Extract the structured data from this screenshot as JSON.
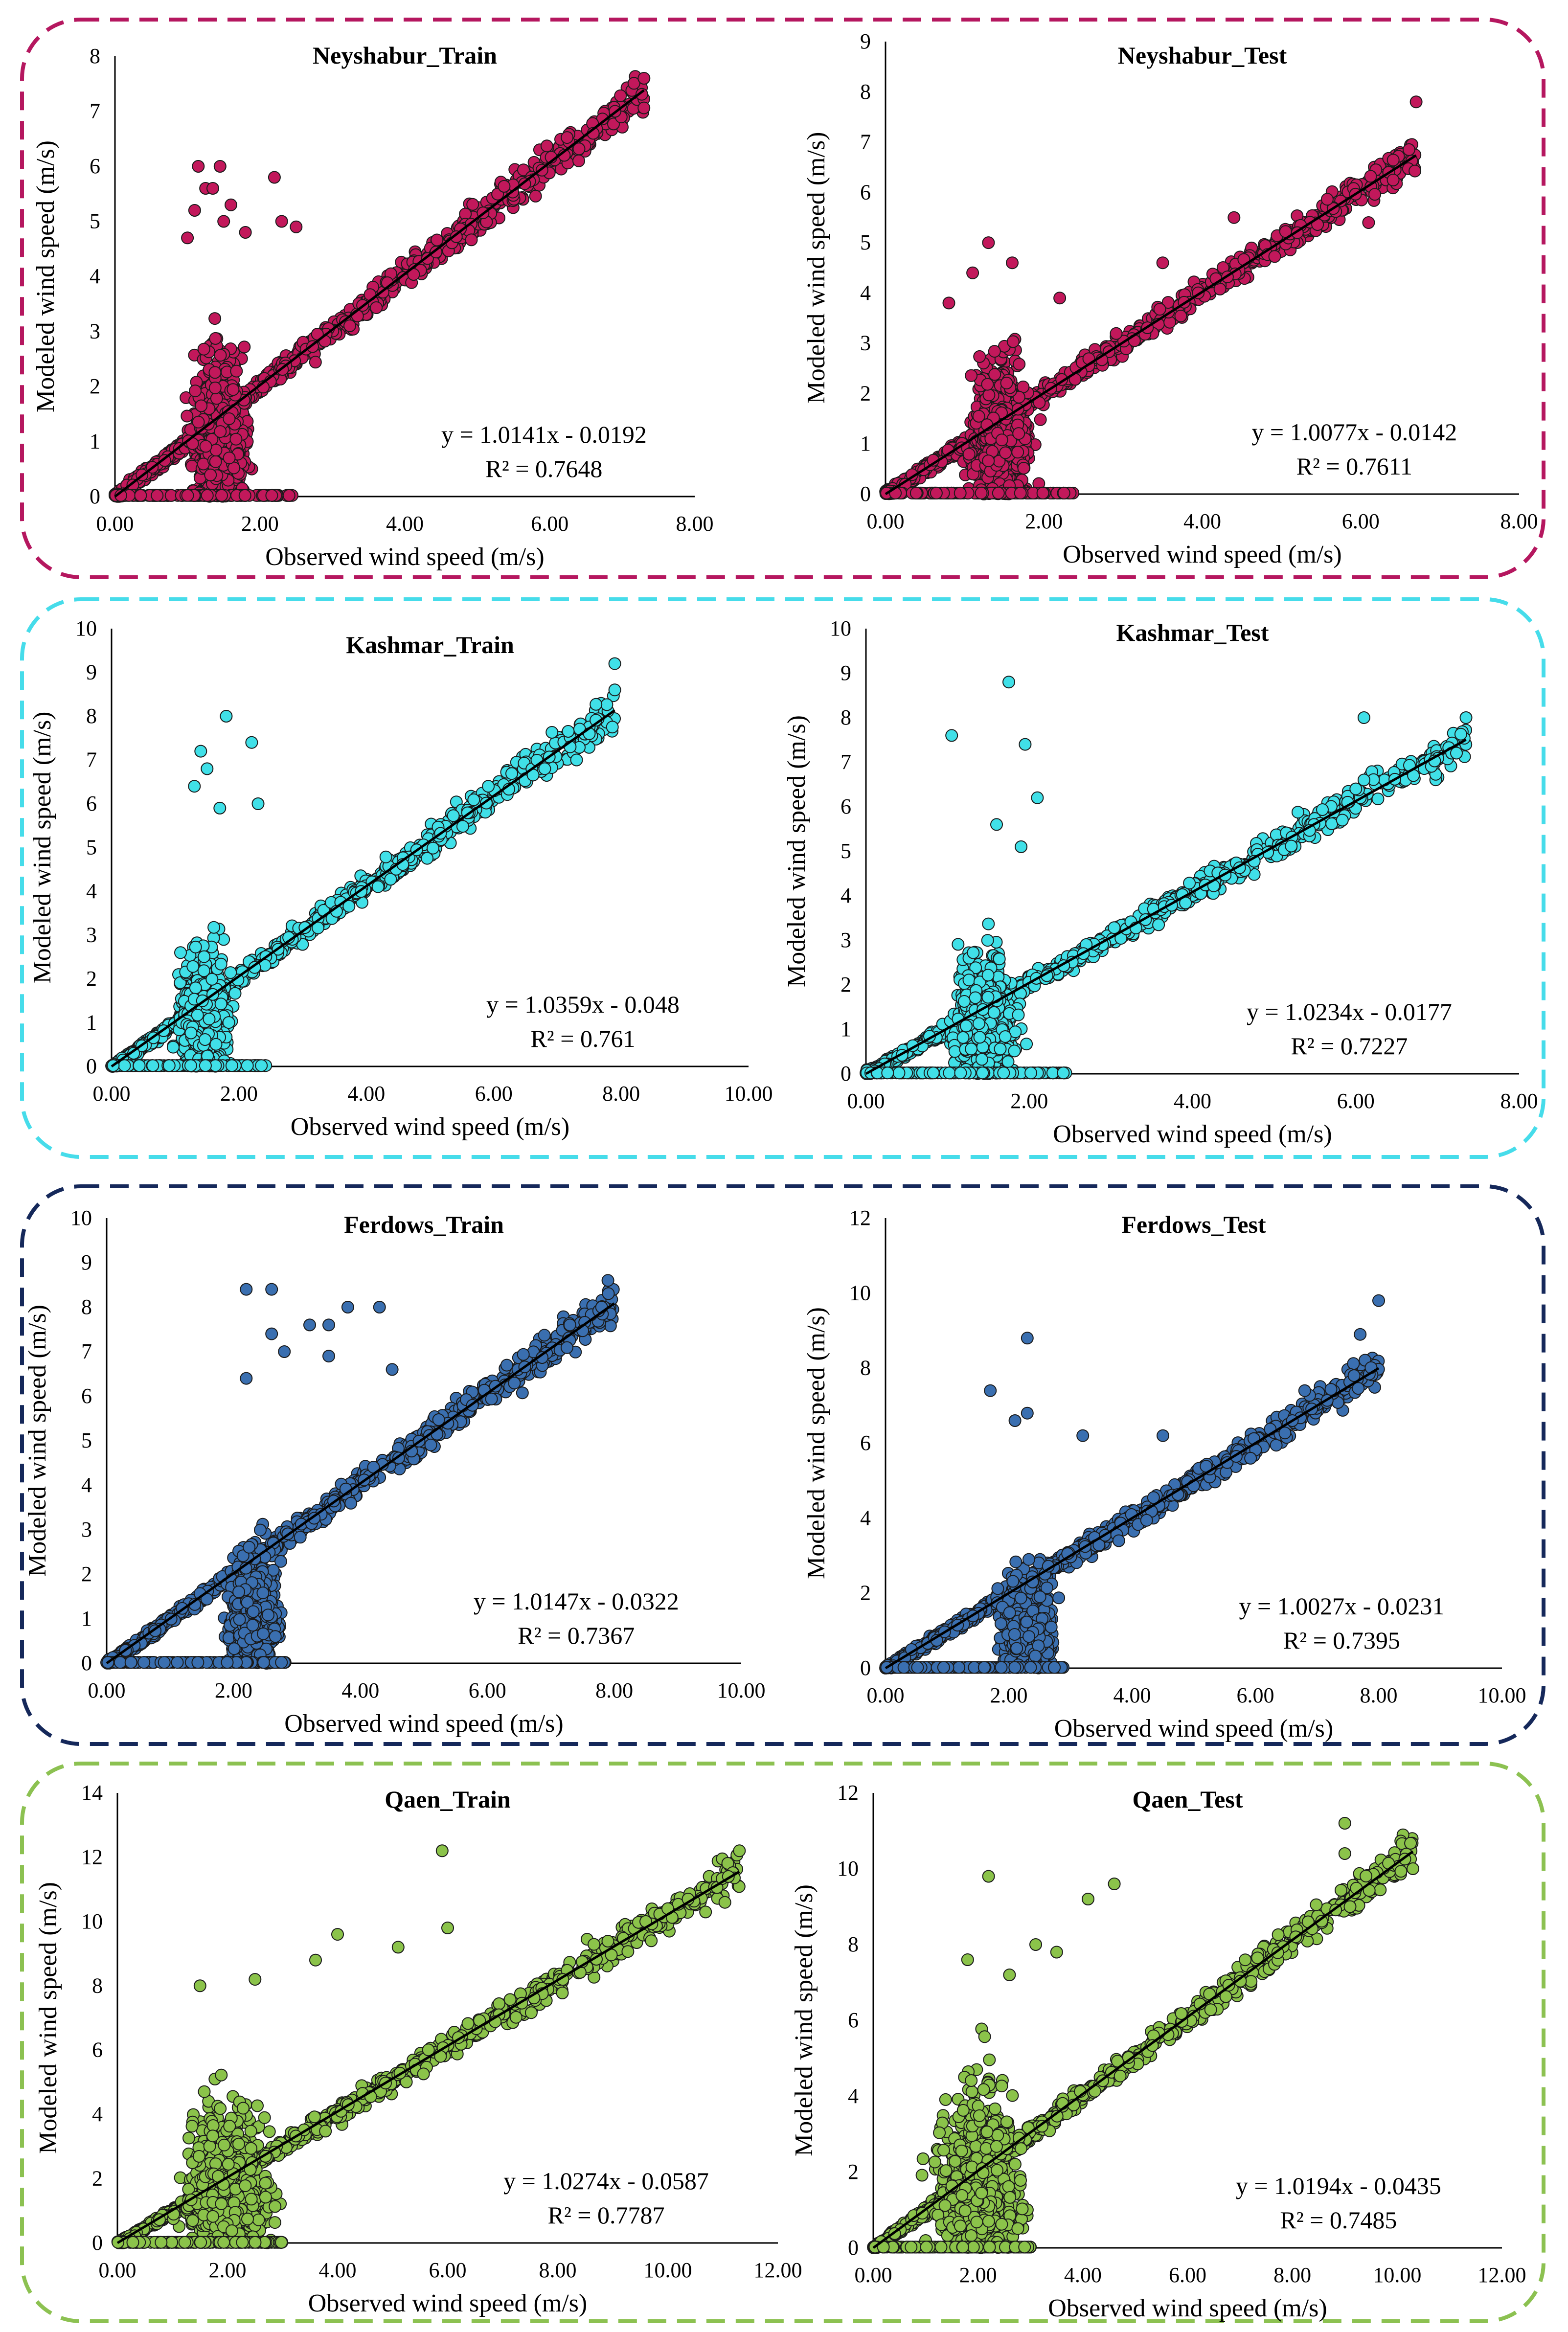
{
  "figure": {
    "groups": [
      {
        "station": "Neyshabur",
        "border_color": "#b5175f"
      },
      {
        "station": "Kashmar",
        "border_color": "#46dcea"
      },
      {
        "station": "Ferdows",
        "border_color": "#15285a"
      },
      {
        "station": "Qaen",
        "border_color": "#8cc151"
      }
    ]
  },
  "chart_data": [
    {
      "type": "scatter",
      "title": "Neyshabur_Train",
      "xlabel": "Observed wind speed (m/s)",
      "ylabel": "Modeled wind speed (m/s)",
      "xlim": [
        0,
        8
      ],
      "ylim": [
        0,
        8
      ],
      "xticks": [
        "0.00",
        "2.00",
        "4.00",
        "6.00",
        "8.00"
      ],
      "yticks": [
        "0",
        "1",
        "2",
        "3",
        "4",
        "5",
        "6",
        "7",
        "8"
      ],
      "marker_color": "#c2185b",
      "equation": "y = 1.0141x - 0.0192",
      "r2_label": "R² = 0.7648",
      "trendline": {
        "slope": 1.0141,
        "intercept": -0.0192,
        "x_range": [
          0,
          7.3
        ]
      },
      "outliers": [
        [
          1.15,
          6.0
        ],
        [
          1.45,
          6.0
        ],
        [
          1.25,
          5.6
        ],
        [
          1.35,
          5.6
        ],
        [
          2.2,
          5.8
        ],
        [
          1.1,
          5.2
        ],
        [
          1.5,
          5.0
        ],
        [
          1.8,
          4.8
        ],
        [
          2.3,
          5.0
        ],
        [
          1.6,
          5.3
        ],
        [
          2.5,
          4.9
        ],
        [
          1.0,
          4.7
        ],
        [
          7.3,
          7.6
        ],
        [
          6.9,
          7.0
        ],
        [
          6.2,
          6.2
        ],
        [
          6.4,
          6.1
        ],
        [
          6.6,
          6.6
        ]
      ]
    },
    {
      "type": "scatter",
      "title": "Neyshabur_Test",
      "xlabel": "Observed wind speed (m/s)",
      "ylabel": "Modeled wind speed (m/s)",
      "xlim": [
        0,
        8
      ],
      "ylim": [
        0,
        9
      ],
      "xticks": [
        "0.00",
        "2.00",
        "4.00",
        "6.00",
        "8.00"
      ],
      "yticks": [
        "0",
        "1",
        "2",
        "3",
        "4",
        "5",
        "6",
        "7",
        "8",
        "9"
      ],
      "marker_color": "#c2185b",
      "equation": "y = 1.0077x - 0.0142",
      "r2_label": "R² = 0.7611",
      "trendline": {
        "slope": 1.0077,
        "intercept": -0.0142,
        "x_range": [
          0,
          6.7
        ]
      },
      "outliers": [
        [
          1.3,
          5.0
        ],
        [
          1.1,
          4.4
        ],
        [
          1.6,
          4.6
        ],
        [
          0.8,
          3.8
        ],
        [
          2.2,
          3.9
        ],
        [
          6.7,
          7.8
        ],
        [
          6.1,
          5.4
        ],
        [
          4.4,
          5.5
        ],
        [
          3.5,
          4.6
        ],
        [
          5.2,
          5.2
        ]
      ]
    },
    {
      "type": "scatter",
      "title": "Kashmar_Train",
      "xlabel": "Observed wind speed (m/s)",
      "ylabel": "Modeled wind speed (m/s)",
      "xlim": [
        0,
        10
      ],
      "ylim": [
        0,
        10
      ],
      "xticks": [
        "0.00",
        "2.00",
        "4.00",
        "6.00",
        "8.00",
        "10.00"
      ],
      "yticks": [
        "0",
        "1",
        "2",
        "3",
        "4",
        "5",
        "6",
        "7",
        "8",
        "9",
        "10"
      ],
      "marker_color": "#40e0e8",
      "equation": "y = 1.0359x - 0.048",
      "r2_label": "R² = 0.761",
      "trendline": {
        "slope": 1.0359,
        "intercept": -0.048,
        "x_range": [
          0,
          7.9
        ]
      },
      "outliers": [
        [
          1.8,
          8.0
        ],
        [
          1.4,
          7.2
        ],
        [
          2.2,
          7.4
        ],
        [
          1.5,
          6.8
        ],
        [
          1.3,
          6.4
        ],
        [
          2.3,
          6.0
        ],
        [
          1.7,
          5.9
        ],
        [
          7.9,
          9.2
        ],
        [
          7.9,
          8.6
        ],
        [
          7.5,
          7.6
        ],
        [
          7.3,
          7.0
        ],
        [
          7.2,
          7.3
        ],
        [
          6.8,
          6.8
        ]
      ]
    },
    {
      "type": "scatter",
      "title": "Kashmar_Test",
      "xlabel": "Observed wind speed (m/s)",
      "ylabel": "Modeled wind speed (m/s)",
      "xlim": [
        0,
        8
      ],
      "ylim": [
        0,
        10
      ],
      "xticks": [
        "0.00",
        "2.00",
        "4.00",
        "6.00",
        "8.00"
      ],
      "yticks": [
        "0",
        "1",
        "2",
        "3",
        "4",
        "5",
        "6",
        "7",
        "8",
        "9",
        "10"
      ],
      "marker_color": "#40e0e8",
      "equation": "y = 1.0234x - 0.0177",
      "r2_label": "R² = 0.7227",
      "trendline": {
        "slope": 1.0234,
        "intercept": -0.0177,
        "x_range": [
          0,
          7.35
        ]
      },
      "outliers": [
        [
          1.75,
          8.8
        ],
        [
          1.05,
          7.6
        ],
        [
          1.95,
          7.4
        ],
        [
          2.1,
          6.2
        ],
        [
          1.6,
          5.6
        ],
        [
          1.9,
          5.1
        ],
        [
          7.35,
          8.0
        ],
        [
          6.1,
          8.0
        ],
        [
          6.1,
          6.6
        ],
        [
          6.0,
          6.4
        ],
        [
          5.9,
          6.1
        ]
      ]
    },
    {
      "type": "scatter",
      "title": "Ferdows_Train",
      "xlabel": "Observed wind speed (m/s)",
      "ylabel": "Modeled wind speed (m/s)",
      "xlim": [
        0,
        10
      ],
      "ylim": [
        0,
        10
      ],
      "xticks": [
        "0.00",
        "2.00",
        "4.00",
        "6.00",
        "8.00",
        "10.00"
      ],
      "yticks": [
        "0",
        "1",
        "2",
        "3",
        "4",
        "5",
        "6",
        "7",
        "8",
        "9",
        "10"
      ],
      "marker_color": "#3a6fb0",
      "equation": "y = 1.0147x - 0.0322",
      "r2_label": "R² = 0.7367",
      "trendline": {
        "slope": 1.0147,
        "intercept": -0.0322,
        "x_range": [
          0,
          8.0
        ]
      },
      "outliers": [
        [
          2.2,
          8.4
        ],
        [
          2.6,
          8.4
        ],
        [
          3.8,
          8.0
        ],
        [
          4.3,
          8.0
        ],
        [
          2.6,
          7.4
        ],
        [
          3.2,
          7.6
        ],
        [
          3.5,
          7.6
        ],
        [
          2.8,
          7.0
        ],
        [
          3.5,
          6.9
        ],
        [
          2.2,
          6.4
        ],
        [
          4.5,
          6.6
        ],
        [
          7.9,
          8.6
        ],
        [
          7.8,
          8.0
        ],
        [
          7.3,
          7.6
        ]
      ]
    },
    {
      "type": "scatter",
      "title": "Ferdows_Test",
      "xlabel": "Observed wind speed (m/s)",
      "ylabel": "Modeled wind speed (m/s)",
      "xlim": [
        0,
        10
      ],
      "ylim": [
        0,
        12
      ],
      "xticks": [
        "0.00",
        "2.00",
        "4.00",
        "6.00",
        "8.00",
        "10.00"
      ],
      "yticks": [
        "0",
        "2",
        "4",
        "6",
        "8",
        "10",
        "12"
      ],
      "marker_color": "#3a6fb0",
      "equation": "y = 1.0027x - 0.0231",
      "r2_label": "R² = 0.7395",
      "trendline": {
        "slope": 1.0027,
        "intercept": -0.0231,
        "x_range": [
          0,
          8.0
        ]
      },
      "outliers": [
        [
          2.3,
          8.8
        ],
        [
          1.7,
          7.4
        ],
        [
          2.3,
          6.8
        ],
        [
          2.1,
          6.6
        ],
        [
          3.2,
          6.2
        ],
        [
          4.5,
          6.2
        ],
        [
          8.0,
          9.8
        ],
        [
          7.7,
          8.9
        ],
        [
          7.6,
          7.8
        ],
        [
          6.8,
          7.4
        ],
        [
          6.6,
          6.6
        ]
      ]
    },
    {
      "type": "scatter",
      "title": "Qaen_Train",
      "xlabel": "Observed wind speed (m/s)",
      "ylabel": "Modeled wind speed (m/s)",
      "xlim": [
        0,
        12
      ],
      "ylim": [
        0,
        14
      ],
      "xticks": [
        "0.00",
        "2.00",
        "4.00",
        "6.00",
        "8.00",
        "10.00",
        "12.00"
      ],
      "yticks": [
        "0",
        "2",
        "4",
        "6",
        "8",
        "10",
        "12",
        "14"
      ],
      "marker_color": "#8bc34a",
      "equation": "y = 1.0274x - 0.0587",
      "r2_label": "R² = 0.7787",
      "trendline": {
        "slope": 1.0274,
        "intercept": -0.0587,
        "x_range": [
          0,
          11.3
        ]
      },
      "outliers": [
        [
          5.9,
          12.2
        ],
        [
          4.0,
          9.6
        ],
        [
          5.1,
          9.2
        ],
        [
          3.6,
          8.8
        ],
        [
          2.5,
          8.2
        ],
        [
          1.5,
          8.0
        ],
        [
          6.0,
          9.8
        ],
        [
          11.3,
          12.2
        ],
        [
          11.1,
          11.4
        ],
        [
          9.6,
          10.0
        ],
        [
          9.7,
          9.4
        ],
        [
          10.0,
          10.4
        ]
      ]
    },
    {
      "type": "scatter",
      "title": "Qaen_Test",
      "xlabel": "Observed wind speed (m/s)",
      "ylabel": "Modeled wind speed (m/s)",
      "xlim": [
        0,
        12
      ],
      "ylim": [
        0,
        12
      ],
      "xticks": [
        "0.00",
        "2.00",
        "4.00",
        "6.00",
        "8.00",
        "10.00",
        "12.00"
      ],
      "yticks": [
        "0",
        "2",
        "4",
        "6",
        "8",
        "10",
        "12"
      ],
      "marker_color": "#8bc34a",
      "equation": "y = 1.0194x - 0.0435",
      "r2_label": "R² = 0.7485",
      "trendline": {
        "slope": 1.0194,
        "intercept": -0.0435,
        "x_range": [
          0,
          10.3
        ]
      },
      "outliers": [
        [
          2.2,
          9.8
        ],
        [
          4.1,
          9.2
        ],
        [
          4.6,
          9.6
        ],
        [
          3.1,
          8.0
        ],
        [
          3.5,
          7.8
        ],
        [
          1.8,
          7.6
        ],
        [
          2.6,
          7.2
        ],
        [
          9.0,
          11.2
        ],
        [
          9.0,
          10.4
        ],
        [
          10.3,
          10.0
        ],
        [
          9.1,
          9.0
        ],
        [
          8.3,
          8.6
        ]
      ]
    }
  ]
}
